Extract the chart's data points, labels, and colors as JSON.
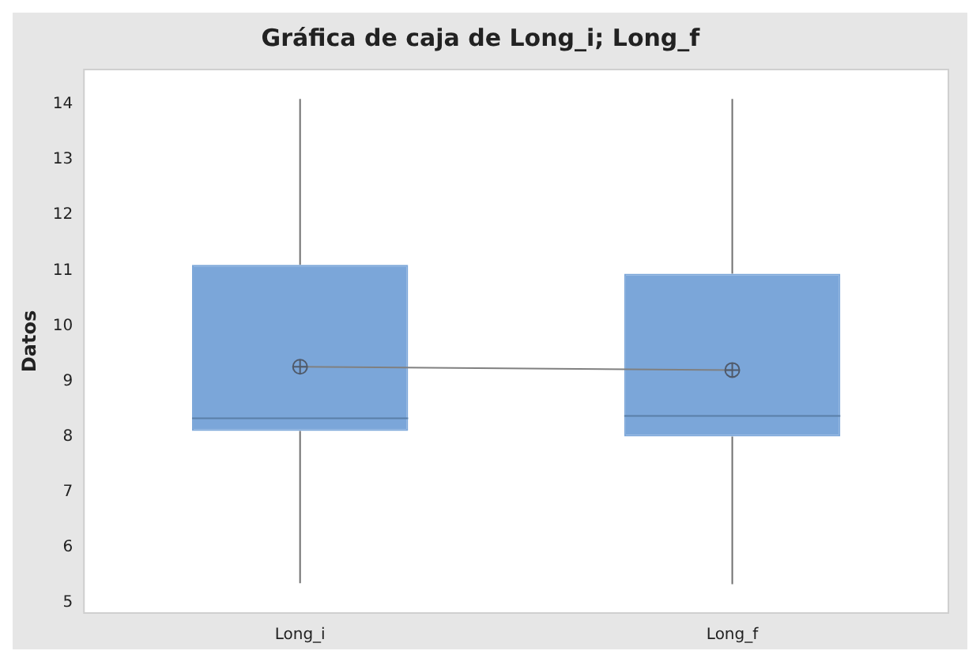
{
  "chart_data": {
    "type": "box",
    "title": "Gráfica de caja de Long_i; Long_f",
    "ylabel": "Datos",
    "categories": [
      "Long_i",
      "Long_f"
    ],
    "color": "#7ba6d9",
    "boxes": [
      {
        "low": 5.35,
        "q1": 8.1,
        "median": 8.33,
        "q3": 11.1,
        "high": 14.1,
        "mean": 9.26
      },
      {
        "low": 5.33,
        "q1": 8.0,
        "median": 8.37,
        "q3": 10.94,
        "high": 14.1,
        "mean": 9.2
      }
    ],
    "series": [
      {
        "type": "line",
        "color": "#808080",
        "values": [
          9.26,
          9.2
        ]
      }
    ],
    "ylim": [
      4.81,
      14.63
    ],
    "yticks": [
      5,
      6,
      7,
      8,
      9,
      10,
      11,
      12,
      13,
      14
    ],
    "grid": false,
    "legend": false
  }
}
